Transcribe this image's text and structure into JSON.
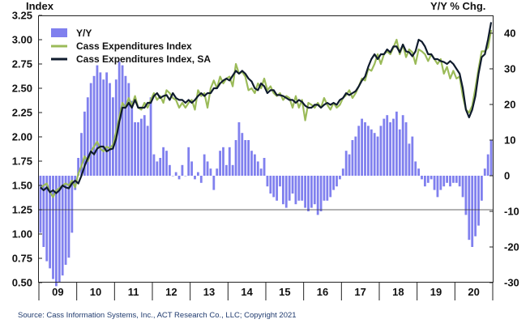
{
  "chart_data": {
    "type": "bar+line",
    "left_axis_title": "Index",
    "right_axis_title": "Y/Y % Chg.",
    "left_ticks": [
      "3.25",
      "3.00",
      "2.75",
      "2.50",
      "2.25",
      "2.00",
      "1.75",
      "1.50",
      "1.25",
      "1.00",
      "0.75",
      "0.50"
    ],
    "left_ylim": [
      0.5,
      3.25
    ],
    "right_ticks": [
      "40",
      "30",
      "20",
      "10",
      "0",
      "-10",
      "-20",
      "-30"
    ],
    "right_ylim": [
      -30,
      45
    ],
    "x_labels": [
      "09",
      "10",
      "11",
      "12",
      "13",
      "14",
      "15",
      "16",
      "17",
      "18",
      "19",
      "20"
    ],
    "source": "Source: Cass Information Systems, Inc., ACT Research Co., LLC; Copyright 2021",
    "colors": {
      "yy": "#8080ee",
      "index": "#9bbb59",
      "sa": "#0f1b2d"
    },
    "series": [
      {
        "name": "Y/Y",
        "values": [
          -16,
          -20,
          -24,
          -26,
          -29,
          -31,
          -30,
          -28,
          -25,
          -23,
          -16,
          -4,
          5,
          12,
          18,
          22,
          26,
          28,
          31,
          29,
          27,
          29,
          26,
          22,
          27,
          32,
          31,
          28,
          26,
          21,
          15,
          15,
          16,
          17,
          14,
          22,
          6,
          4,
          5,
          8,
          7,
          3,
          0,
          1,
          -1,
          3,
          0,
          8,
          4,
          -1,
          1,
          -2,
          6,
          4,
          2,
          -4,
          2,
          7,
          8,
          3,
          8,
          3,
          10,
          15,
          12,
          10,
          10,
          7,
          6,
          4,
          2,
          5,
          -3,
          -5,
          -6,
          -7,
          -3,
          -8,
          -9,
          -7,
          -5,
          -8,
          -7,
          -7,
          -9,
          -10,
          -9,
          -8,
          -11,
          -10,
          -7,
          -7,
          -6,
          -4,
          -3,
          -1,
          2,
          7,
          6,
          10,
          11,
          14,
          16,
          15,
          14,
          13,
          12,
          11,
          14,
          16,
          17,
          15,
          16,
          18,
          13,
          17,
          15,
          9,
          11,
          4,
          2,
          -1,
          -3,
          -2,
          -1,
          -4,
          -6,
          -4,
          -3,
          -2,
          -3,
          -2,
          -2,
          -3,
          -6,
          -11,
          -18,
          -20,
          -17,
          -14,
          -7,
          2,
          6,
          10
        ]
      },
      {
        "name": "Cass Expenditures Index",
        "values": [
          1.47,
          1.5,
          1.52,
          1.43,
          1.38,
          1.45,
          1.47,
          1.5,
          1.52,
          1.5,
          1.55,
          1.48,
          1.62,
          1.7,
          1.8,
          1.75,
          1.85,
          1.9,
          1.95,
          1.88,
          1.85,
          1.9,
          1.88,
          1.92,
          2.05,
          2.2,
          2.35,
          2.3,
          2.4,
          2.32,
          2.42,
          2.3,
          2.28,
          2.35,
          2.3,
          2.38,
          2.45,
          2.38,
          2.42,
          2.35,
          2.48,
          2.45,
          2.4,
          2.38,
          2.3,
          2.35,
          2.3,
          2.35,
          2.38,
          2.28,
          2.48,
          2.42,
          2.45,
          2.3,
          2.5,
          2.58,
          2.5,
          2.62,
          2.55,
          2.6,
          2.62,
          2.52,
          2.75,
          2.65,
          2.67,
          2.62,
          2.48,
          2.5,
          2.45,
          2.55,
          2.5,
          2.6,
          2.48,
          2.52,
          2.45,
          2.42,
          2.45,
          2.38,
          2.42,
          2.4,
          2.3,
          2.42,
          2.3,
          2.38,
          2.17,
          2.35,
          2.33,
          2.3,
          2.35,
          2.3,
          2.4,
          2.33,
          2.28,
          2.35,
          2.3,
          2.33,
          2.4,
          2.43,
          2.48,
          2.4,
          2.45,
          2.52,
          2.6,
          2.58,
          2.7,
          2.68,
          2.75,
          2.85,
          2.75,
          2.85,
          2.88,
          2.85,
          2.92,
          3.0,
          2.85,
          2.95,
          2.82,
          2.9,
          2.87,
          2.75,
          2.9,
          2.88,
          2.85,
          2.78,
          2.85,
          2.8,
          2.75,
          2.8,
          2.65,
          2.72,
          2.6,
          2.68,
          2.6,
          2.62,
          2.42,
          2.28,
          2.25,
          2.32,
          2.5,
          2.7,
          2.88,
          2.88,
          2.92,
          3.1
        ]
      },
      {
        "name": "Cass Expenditures Index, SA",
        "values": [
          1.48,
          1.45,
          1.48,
          1.43,
          1.45,
          1.42,
          1.45,
          1.5,
          1.48,
          1.47,
          1.52,
          1.55,
          1.52,
          1.6,
          1.7,
          1.78,
          1.85,
          1.82,
          1.88,
          1.9,
          1.9,
          1.85,
          1.87,
          1.88,
          1.98,
          2.15,
          2.3,
          2.3,
          2.35,
          2.3,
          2.38,
          2.3,
          2.3,
          2.3,
          2.35,
          2.35,
          2.42,
          2.45,
          2.4,
          2.42,
          2.43,
          2.38,
          2.45,
          2.4,
          2.38,
          2.38,
          2.35,
          2.38,
          2.35,
          2.38,
          2.42,
          2.45,
          2.42,
          2.45,
          2.45,
          2.5,
          2.5,
          2.55,
          2.58,
          2.6,
          2.58,
          2.63,
          2.68,
          2.65,
          2.68,
          2.65,
          2.6,
          2.57,
          2.5,
          2.48,
          2.55,
          2.52,
          2.45,
          2.48,
          2.48,
          2.43,
          2.43,
          2.42,
          2.4,
          2.38,
          2.38,
          2.35,
          2.38,
          2.36,
          2.32,
          2.3,
          2.3,
          2.33,
          2.33,
          2.3,
          2.33,
          2.35,
          2.33,
          2.35,
          2.33,
          2.38,
          2.4,
          2.45,
          2.43,
          2.45,
          2.47,
          2.52,
          2.58,
          2.62,
          2.72,
          2.8,
          2.85,
          2.8,
          2.85,
          2.85,
          2.9,
          2.87,
          2.93,
          2.93,
          2.87,
          2.95,
          2.88,
          2.87,
          2.83,
          2.88,
          3.0,
          2.98,
          2.93,
          2.85,
          2.85,
          2.8,
          2.8,
          2.78,
          2.77,
          2.75,
          2.78,
          2.75,
          2.7,
          2.65,
          2.5,
          2.28,
          2.2,
          2.28,
          2.42,
          2.65,
          2.82,
          2.85,
          3.0,
          3.18
        ]
      }
    ]
  }
}
